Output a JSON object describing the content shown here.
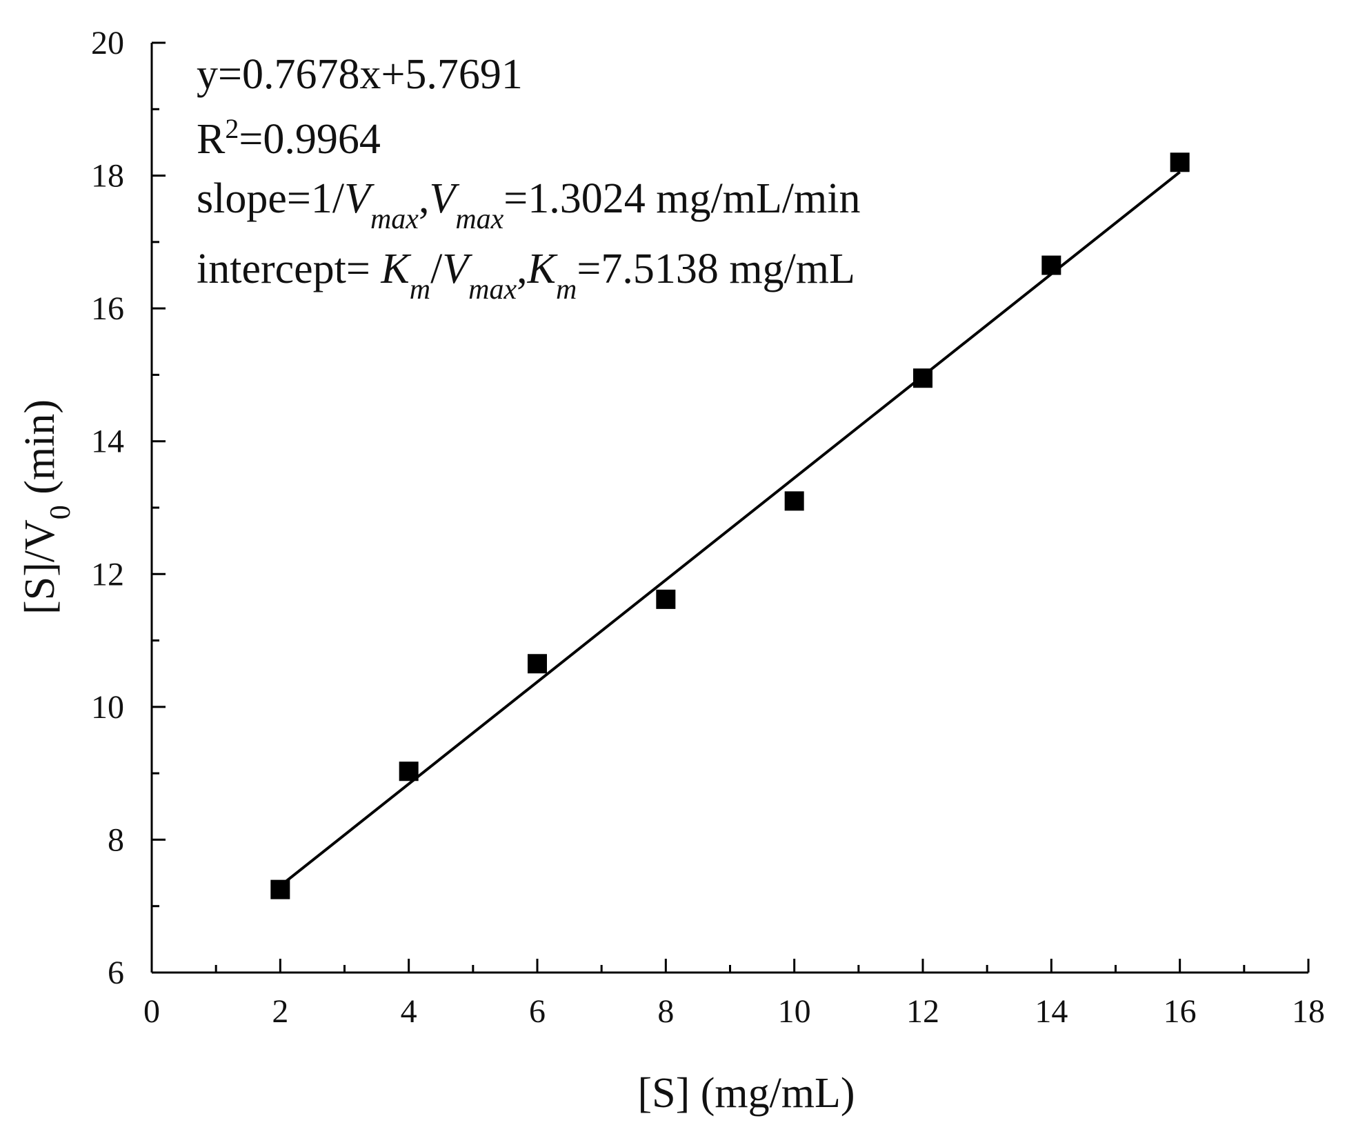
{
  "chart_data": {
    "type": "scatter",
    "xlabel": "[S] (mg/mL)",
    "ylabel": {
      "main": "[S]/V",
      "sub": "0",
      "tail": " (min)"
    },
    "xlim": [
      0,
      18
    ],
    "ylim": [
      6,
      20
    ],
    "x_ticks": [
      0,
      2,
      4,
      6,
      8,
      10,
      12,
      14,
      16,
      18
    ],
    "y_ticks": [
      6,
      8,
      10,
      12,
      14,
      16,
      18,
      20
    ],
    "grid": false,
    "series": [
      {
        "marker": "square",
        "color": "#000000",
        "points": [
          {
            "x": 2,
            "y": 7.25
          },
          {
            "x": 4,
            "y": 9.03
          },
          {
            "x": 6,
            "y": 10.65
          },
          {
            "x": 8,
            "y": 11.62
          },
          {
            "x": 10,
            "y": 13.1
          },
          {
            "x": 12,
            "y": 14.95
          },
          {
            "x": 14,
            "y": 16.65
          },
          {
            "x": 16,
            "y": 18.2
          }
        ]
      }
    ],
    "fit_line": {
      "slope": 0.7678,
      "intercept": 5.7691,
      "x_range": [
        2,
        16
      ],
      "color": "#000000"
    },
    "annotations": {
      "equation": "y=0.7678x+5.7691",
      "r2_label": "R",
      "r2_sup": "2",
      "r2_value": "=0.9964",
      "slope_line": {
        "p1": "slope=1/",
        "v1": "V",
        "s1": "max",
        "p2": ",",
        "v2": "V",
        "s2": "max",
        "p3": "=1.3024 mg/mL/min"
      },
      "intercept_line": {
        "p1": "intercept= ",
        "k1": "K",
        "ks1": "m",
        "p2": "/",
        "v1": "V",
        "vs1": "max",
        "p3": ",",
        "k2": "K",
        "ks2": "m",
        "p4": "=7.5138 mg/mL"
      }
    }
  }
}
